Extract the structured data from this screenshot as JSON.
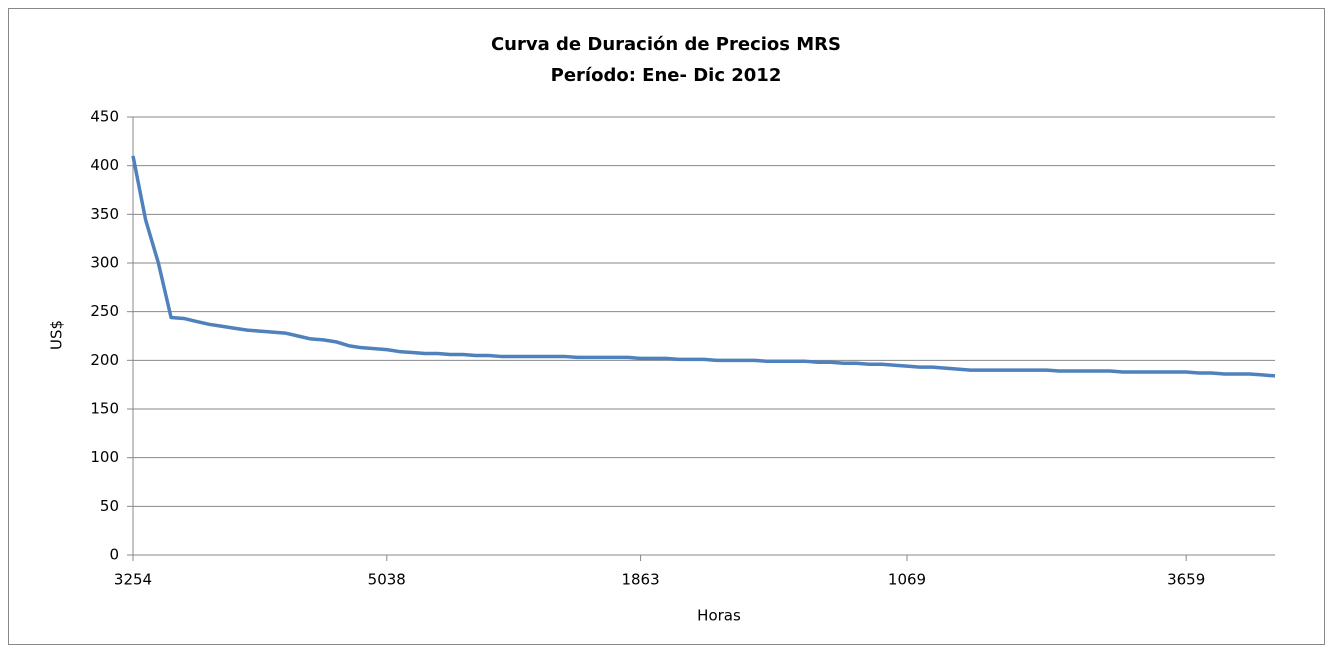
{
  "chart_data": {
    "type": "line",
    "title": "Curva de Duración de Precios MRS",
    "subtitle": "Período: Ene- Dic 2012",
    "y_label": "US$",
    "x_label": "Horas",
    "categories": [
      "3254",
      null,
      null,
      null,
      null,
      null,
      null,
      null,
      null,
      null,
      null,
      null,
      null,
      null,
      null,
      null,
      null,
      null,
      null,
      null,
      "5038",
      null,
      null,
      null,
      null,
      null,
      null,
      null,
      null,
      null,
      null,
      null,
      null,
      null,
      null,
      null,
      null,
      null,
      null,
      null,
      "1863",
      null,
      null,
      null,
      null,
      null,
      null,
      null,
      null,
      null,
      null,
      null,
      null,
      null,
      null,
      null,
      null,
      null,
      null,
      null,
      null,
      "1069",
      null,
      null,
      null,
      null,
      null,
      null,
      null,
      null,
      null,
      null,
      null,
      null,
      null,
      null,
      null,
      null,
      null,
      null,
      null,
      null,
      null,
      "3659",
      null,
      null,
      null,
      null,
      null,
      null,
      null
    ],
    "series": [
      {
        "name": "MRS",
        "color": "#4f81bd",
        "values": [
          410,
          344,
          300,
          244,
          243,
          240,
          237,
          235,
          233,
          231,
          230,
          229,
          228,
          225,
          222,
          221,
          219,
          215,
          213,
          212,
          211,
          209,
          208,
          207,
          207,
          206,
          206,
          205,
          205,
          204,
          204,
          204,
          204,
          204,
          204,
          203,
          203,
          203,
          203,
          203,
          202,
          202,
          202,
          201,
          201,
          201,
          200,
          200,
          200,
          200,
          199,
          199,
          199,
          199,
          198,
          198,
          197,
          197,
          196,
          196,
          195,
          194,
          193,
          193,
          192,
          191,
          190,
          190,
          190,
          190,
          190,
          190,
          190,
          189,
          189,
          189,
          189,
          189,
          188,
          188,
          188,
          188,
          188,
          188,
          187,
          187,
          186,
          186,
          186,
          185,
          184
        ]
      }
    ],
    "ylim": [
      0,
      450
    ],
    "yticks": [
      0,
      50,
      100,
      150,
      200,
      250,
      300,
      350,
      400,
      450
    ],
    "grid": true,
    "legend": false
  }
}
